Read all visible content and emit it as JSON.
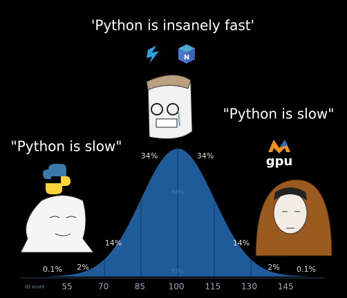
{
  "top_caption": "'Python is insanely fast'",
  "left_caption": "\"Python is slow\"",
  "right_caption": "\"Python is slow\"",
  "right_logo_text": "gpu",
  "percentages": [
    "0.1%",
    "2%",
    "14%",
    "34%",
    "34%",
    "14%",
    "2%",
    "0.1%"
  ],
  "center_labels": [
    "68%",
    "95%"
  ],
  "axis": {
    "label": "IQ score",
    "ticks": [
      "55",
      "70",
      "85",
      "100",
      "115",
      "130",
      "145"
    ]
  }
}
